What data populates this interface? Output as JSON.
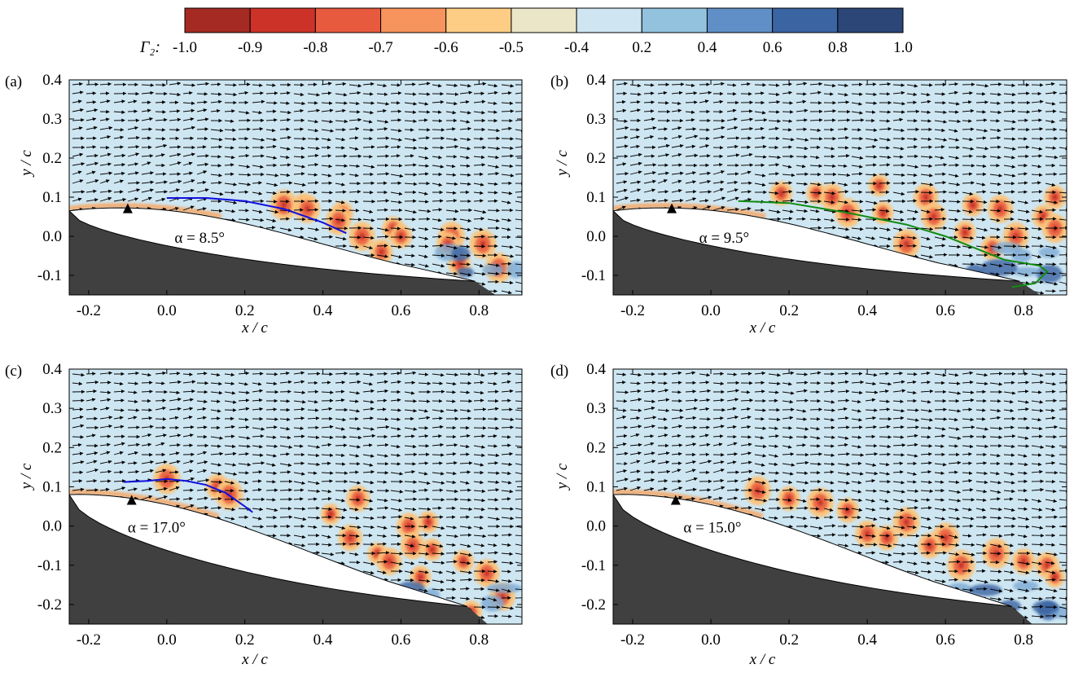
{
  "colorbar": {
    "label": "Γ₂:",
    "ticks": [
      "-1.0",
      "-0.9",
      "-0.8",
      "-0.7",
      "-0.6",
      "-0.5",
      "-0.4",
      "0.2",
      "0.4",
      "0.6",
      "0.8",
      "1.0"
    ],
    "colors": [
      "#a52a23",
      "#cd3229",
      "#e75a3e",
      "#f7935c",
      "#fdcd85",
      "#ece6c8",
      "#cfe6f2",
      "#92c2de",
      "#5f8fc6",
      "#3a64a2",
      "#2b4677"
    ]
  },
  "colors": {
    "background_field": "#cde6f2",
    "body_fill": "#404040",
    "arrow": "#000000",
    "line_a": "#1010e0",
    "line_b": "#118a11",
    "line_c": "#1010e0"
  },
  "chart_data": [
    {
      "type": "vector-field-contour",
      "panel": "(a)",
      "annotation": "α = 8.5°",
      "xlabel": "x / c",
      "ylabel": "y / c",
      "xlim": [
        -0.25,
        0.91
      ],
      "ylim": [
        -0.15,
        0.4
      ],
      "xticks": [
        "-0.2",
        "0.0",
        "0.2",
        "0.4",
        "0.6",
        "0.8"
      ],
      "yticks": [
        "0.4",
        "0.3",
        "0.2",
        "0.1",
        "0.0",
        "-0.1"
      ],
      "marker_x": -0.1,
      "line": [
        [
          0.0,
          0.098
        ],
        [
          0.1,
          0.098
        ],
        [
          0.2,
          0.09
        ],
        [
          0.3,
          0.07
        ],
        [
          0.4,
          0.035
        ],
        [
          0.46,
          0.008
        ]
      ],
      "blobs": [
        [
          0.35,
          0.08
        ],
        [
          0.36,
          0.07
        ],
        [
          0.45,
          0.06
        ],
        [
          0.44,
          0.04
        ],
        [
          0.58,
          0.02
        ],
        [
          0.5,
          0.0
        ],
        [
          0.6,
          0.0
        ],
        [
          0.73,
          0.0
        ],
        [
          0.72,
          -0.02
        ],
        [
          0.81,
          -0.02
        ],
        [
          0.75,
          -0.07
        ],
        [
          0.85,
          -0.08
        ],
        [
          0.55,
          -0.04
        ],
        [
          0.3,
          0.08
        ]
      ]
    },
    {
      "type": "vector-field-contour",
      "panel": "(b)",
      "annotation": "α = 9.5°",
      "xlabel": "x / c",
      "ylabel": "y / c",
      "xlim": [
        -0.25,
        0.91
      ],
      "ylim": [
        -0.15,
        0.4
      ],
      "xticks": [
        "-0.2",
        "0.0",
        "0.2",
        "0.4",
        "0.6",
        "0.8"
      ],
      "yticks": [
        "0.4",
        "0.3",
        "0.2",
        "0.1",
        "0.0",
        "-0.1"
      ],
      "marker_x": -0.1,
      "line": [
        [
          0.07,
          0.09
        ],
        [
          0.2,
          0.085
        ],
        [
          0.35,
          0.06
        ],
        [
          0.5,
          0.03
        ],
        [
          0.6,
          0.0
        ],
        [
          0.75,
          -0.06
        ],
        [
          0.84,
          -0.075
        ],
        [
          0.86,
          -0.09
        ],
        [
          0.83,
          -0.12
        ],
        [
          0.77,
          -0.13
        ]
      ],
      "blobs": [
        [
          0.27,
          0.11
        ],
        [
          0.31,
          0.1
        ],
        [
          0.43,
          0.13
        ],
        [
          0.55,
          0.1
        ],
        [
          0.44,
          0.06
        ],
        [
          0.57,
          0.05
        ],
        [
          0.67,
          0.08
        ],
        [
          0.74,
          0.07
        ],
        [
          0.65,
          0.01
        ],
        [
          0.78,
          0.0
        ],
        [
          0.85,
          0.05
        ],
        [
          0.88,
          0.02
        ],
        [
          0.88,
          0.1
        ],
        [
          0.35,
          0.06
        ],
        [
          0.18,
          0.11
        ],
        [
          0.5,
          -0.02
        ],
        [
          0.72,
          -0.03
        ]
      ]
    },
    {
      "type": "vector-field-contour",
      "panel": "(c)",
      "annotation": "α = 17.0°",
      "xlabel": "x / c",
      "ylabel": "y / c",
      "xlim": [
        -0.25,
        0.91
      ],
      "ylim": [
        -0.25,
        0.4
      ],
      "xticks": [
        "-0.2",
        "0.0",
        "0.2",
        "0.4",
        "0.6",
        "0.8"
      ],
      "yticks": [
        "0.4",
        "0.3",
        "0.2",
        "0.1",
        "0.0",
        "-0.1",
        "-0.2"
      ],
      "marker_x": -0.09,
      "line": [
        [
          -0.11,
          0.112
        ],
        [
          -0.05,
          0.115
        ],
        [
          0.0,
          0.12
        ],
        [
          0.05,
          0.115
        ],
        [
          0.1,
          0.105
        ],
        [
          0.15,
          0.085
        ],
        [
          0.2,
          0.05
        ],
        [
          0.22,
          0.035
        ]
      ],
      "blobs": [
        [
          0.0,
          0.12
        ],
        [
          0.13,
          0.1
        ],
        [
          0.16,
          0.08
        ],
        [
          0.49,
          0.07
        ],
        [
          0.42,
          0.03
        ],
        [
          0.47,
          -0.03
        ],
        [
          0.54,
          -0.07
        ],
        [
          0.62,
          0.0
        ],
        [
          0.67,
          0.01
        ],
        [
          0.63,
          -0.05
        ],
        [
          0.68,
          -0.06
        ],
        [
          0.57,
          -0.09
        ],
        [
          0.76,
          -0.09
        ],
        [
          0.82,
          -0.12
        ],
        [
          0.65,
          -0.13
        ],
        [
          0.86,
          -0.18
        ],
        [
          0.78,
          -0.22
        ]
      ]
    },
    {
      "type": "vector-field-contour",
      "panel": "(d)",
      "annotation": "α = 15.0°",
      "xlabel": "x / c",
      "ylabel": "y / c",
      "xlim": [
        -0.25,
        0.91
      ],
      "ylim": [
        -0.25,
        0.4
      ],
      "xticks": [
        "-0.2",
        "0.0",
        "0.2",
        "0.4",
        "0.6",
        "0.8"
      ],
      "yticks": [
        "0.4",
        "0.3",
        "0.2",
        "0.1",
        "0.0",
        "-0.1",
        "-0.2"
      ],
      "marker_x": -0.09,
      "line": [],
      "blobs": [
        [
          0.12,
          0.09
        ],
        [
          0.2,
          0.07
        ],
        [
          0.28,
          0.06
        ],
        [
          0.35,
          0.04
        ],
        [
          0.5,
          0.01
        ],
        [
          0.45,
          -0.03
        ],
        [
          0.6,
          -0.03
        ],
        [
          0.56,
          -0.05
        ],
        [
          0.73,
          -0.07
        ],
        [
          0.8,
          -0.09
        ],
        [
          0.64,
          -0.1
        ],
        [
          0.86,
          -0.1
        ],
        [
          0.88,
          -0.13
        ],
        [
          0.4,
          -0.02
        ]
      ]
    }
  ]
}
